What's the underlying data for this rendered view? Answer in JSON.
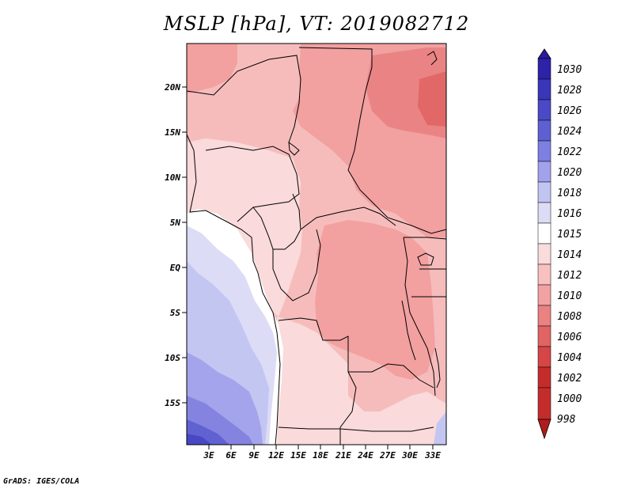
{
  "title": "MSLP [hPa], VT: 2019082712",
  "footer": "GrADS: IGES/COLA",
  "map": {
    "lat_labels": [
      "20N",
      "15N",
      "10N",
      "5N",
      "EQ",
      "5S",
      "10S",
      "15S"
    ],
    "lon_labels": [
      "3E",
      "6E",
      "9E",
      "12E",
      "15E",
      "18E",
      "21E",
      "24E",
      "27E",
      "30E",
      "33E"
    ]
  },
  "colorbar": {
    "levels": [
      "1030",
      "1028",
      "1026",
      "1024",
      "1022",
      "1020",
      "1018",
      "1016",
      "1015",
      "1014",
      "1012",
      "1010",
      "1008",
      "1006",
      "1004",
      "1002",
      "1000",
      "998"
    ],
    "colors": {
      "top_arrow": "#2a1aa0",
      "c1028": "#2e22a8",
      "c1026": "#3a36b8",
      "c1024": "#4a4ac6",
      "c1022": "#5e60d2",
      "c1020": "#7d80e0",
      "c1018": "#a2a2ec",
      "c1016": "#c2c4f2",
      "c1015": "#dcdcf6",
      "c1014": "#ffffff",
      "c1012": "#fadcdc",
      "c1010": "#f8c0c0",
      "c1008": "#f2a2a2",
      "c1006": "#ea8282",
      "c1004": "#e06464",
      "c1002": "#d64646",
      "c1000": "#c42c2c",
      "bottom_arrow": "#b01c1c"
    }
  },
  "field_colors": {
    "p1004": "#e26868",
    "p1006": "#ea8484",
    "p1008": "#f2a0a0",
    "p1010": "#f6bcbc",
    "p1012": "#fadada",
    "p1014": "#ffffff",
    "p1015": "#dcdcf6",
    "p1016": "#c4c6f2",
    "p1018": "#a4a4ec",
    "p1020": "#8484e0",
    "p1022": "#6062d2",
    "p1024": "#4848c4"
  }
}
